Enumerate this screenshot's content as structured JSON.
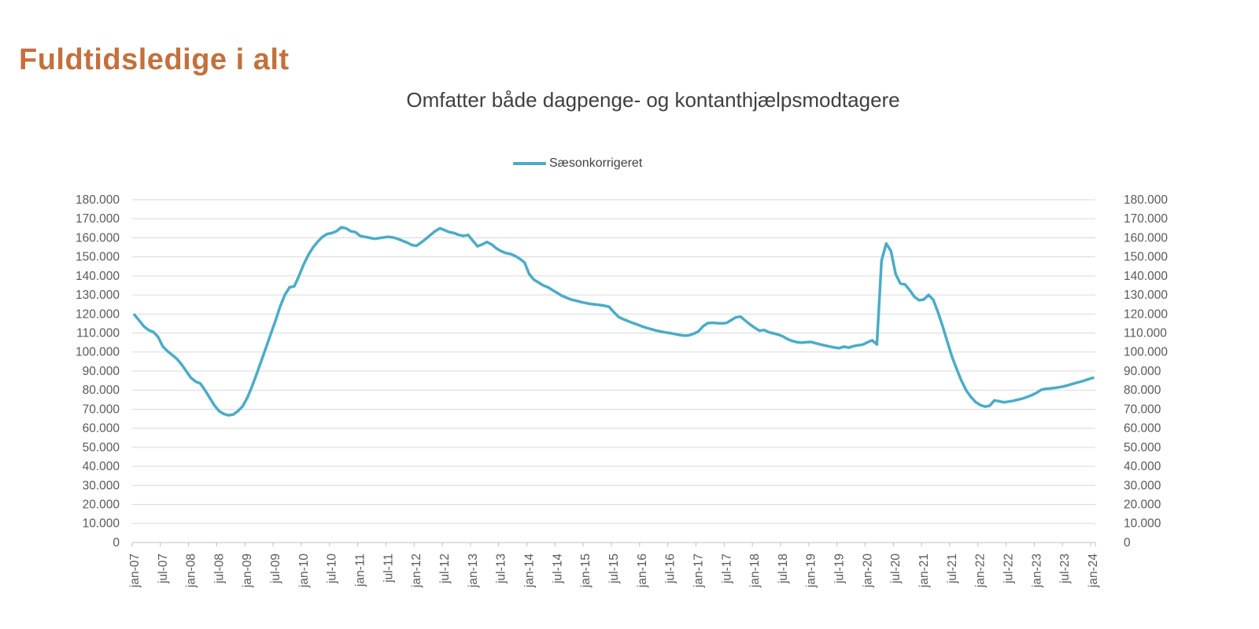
{
  "header": {
    "title": "Fuldtidsledige i alt",
    "title_color": "#C4703C"
  },
  "chart_data": {
    "type": "line",
    "title": "Omfatter både dagpenge- og kontanthjælpsmodtagere",
    "legend_position": "top",
    "grid": "horizontal",
    "colors": {
      "series": "#4BACC6",
      "gridline": "#D9D9D9",
      "axis": "#BFBFBF",
      "labels": "#595959"
    },
    "y_axis": {
      "min": 0,
      "max": 180000,
      "step": 10000,
      "sides": "left-and-right",
      "tick_labels": [
        "0",
        "10.000",
        "20.000",
        "30.000",
        "40.000",
        "50.000",
        "60.000",
        "70.000",
        "80.000",
        "90.000",
        "100.000",
        "110.000",
        "120.000",
        "130.000",
        "140.000",
        "150.000",
        "160.000",
        "170.000",
        "180.000"
      ]
    },
    "x_axis": {
      "start_month": "jan-07",
      "end_month": "jan-24",
      "tick_every_months": 6,
      "tick_labels": [
        "jan-07",
        "jul-07",
        "jan-08",
        "jul-08",
        "jan-09",
        "jul-09",
        "jan-10",
        "jul-10",
        "jan-11",
        "jul-11",
        "jan-12",
        "jul-12",
        "jan-13",
        "jul-13",
        "jan-14",
        "jul-14",
        "jan-15",
        "jul-15",
        "jan-16",
        "jul-16",
        "jan-17",
        "jul-17",
        "jan-18",
        "jul-18",
        "jan-19",
        "jul-19",
        "jan-20",
        "jul-20",
        "jan-21",
        "jul-21",
        "jan-22",
        "jul-22",
        "jan-23",
        "jul-23",
        "jan-24"
      ]
    },
    "series": [
      {
        "name": "Sæsonkorrigeret",
        "color": "#4BACC6",
        "values": [
          119500,
          116500,
          113500,
          111500,
          110500,
          108000,
          103000,
          100500,
          98500,
          96500,
          93500,
          90000,
          86500,
          84500,
          83500,
          80000,
          76000,
          72000,
          69000,
          67500,
          66800,
          67200,
          69000,
          71500,
          76000,
          82000,
          88500,
          95500,
          102500,
          109500,
          116500,
          124000,
          130000,
          134000,
          134500,
          140000,
          146000,
          151000,
          155000,
          158000,
          160500,
          162000,
          162500,
          163500,
          165500,
          165000,
          163500,
          163000,
          161000,
          160500,
          160000,
          159500,
          159800,
          160200,
          160500,
          160200,
          159500,
          158500,
          157500,
          156200,
          155800,
          157500,
          159500,
          161500,
          163500,
          165000,
          164000,
          163000,
          162500,
          161500,
          161000,
          161500,
          158500,
          155500,
          156500,
          157800,
          156500,
          154500,
          153000,
          152000,
          151500,
          150500,
          149000,
          147000,
          141000,
          138000,
          136500,
          135000,
          134000,
          132500,
          131000,
          129500,
          128500,
          127500,
          127000,
          126300,
          125800,
          125300,
          125000,
          124700,
          124300,
          123800,
          121000,
          118500,
          117300,
          116300,
          115300,
          114500,
          113500,
          112700,
          112000,
          111300,
          110800,
          110300,
          110000,
          109500,
          109000,
          108600,
          108800,
          109600,
          110800,
          113500,
          115200,
          115400,
          115200,
          115100,
          115300,
          116800,
          118300,
          118600,
          116500,
          114500,
          112800,
          111200,
          111600,
          110400,
          109800,
          109200,
          108200,
          106800,
          105800,
          105200,
          105000,
          105200,
          105300,
          104600,
          104000,
          103400,
          102900,
          102400,
          102000,
          102900,
          102300,
          103100,
          103600,
          103900,
          105100,
          106200,
          104000,
          148000,
          157000,
          153000,
          141000,
          136000,
          135500,
          132500,
          129000,
          127200,
          127600,
          130000,
          127500,
          121000,
          113500,
          105500,
          97500,
          91000,
          85000,
          80000,
          76500,
          73800,
          72200,
          71400,
          71800,
          74600,
          74200,
          73600,
          74000,
          74400,
          75000,
          75600,
          76400,
          77400,
          78600,
          80200,
          80700,
          80900,
          81200,
          81600,
          82100,
          82800,
          83500,
          84200,
          84900,
          85700,
          86500
        ]
      }
    ]
  }
}
